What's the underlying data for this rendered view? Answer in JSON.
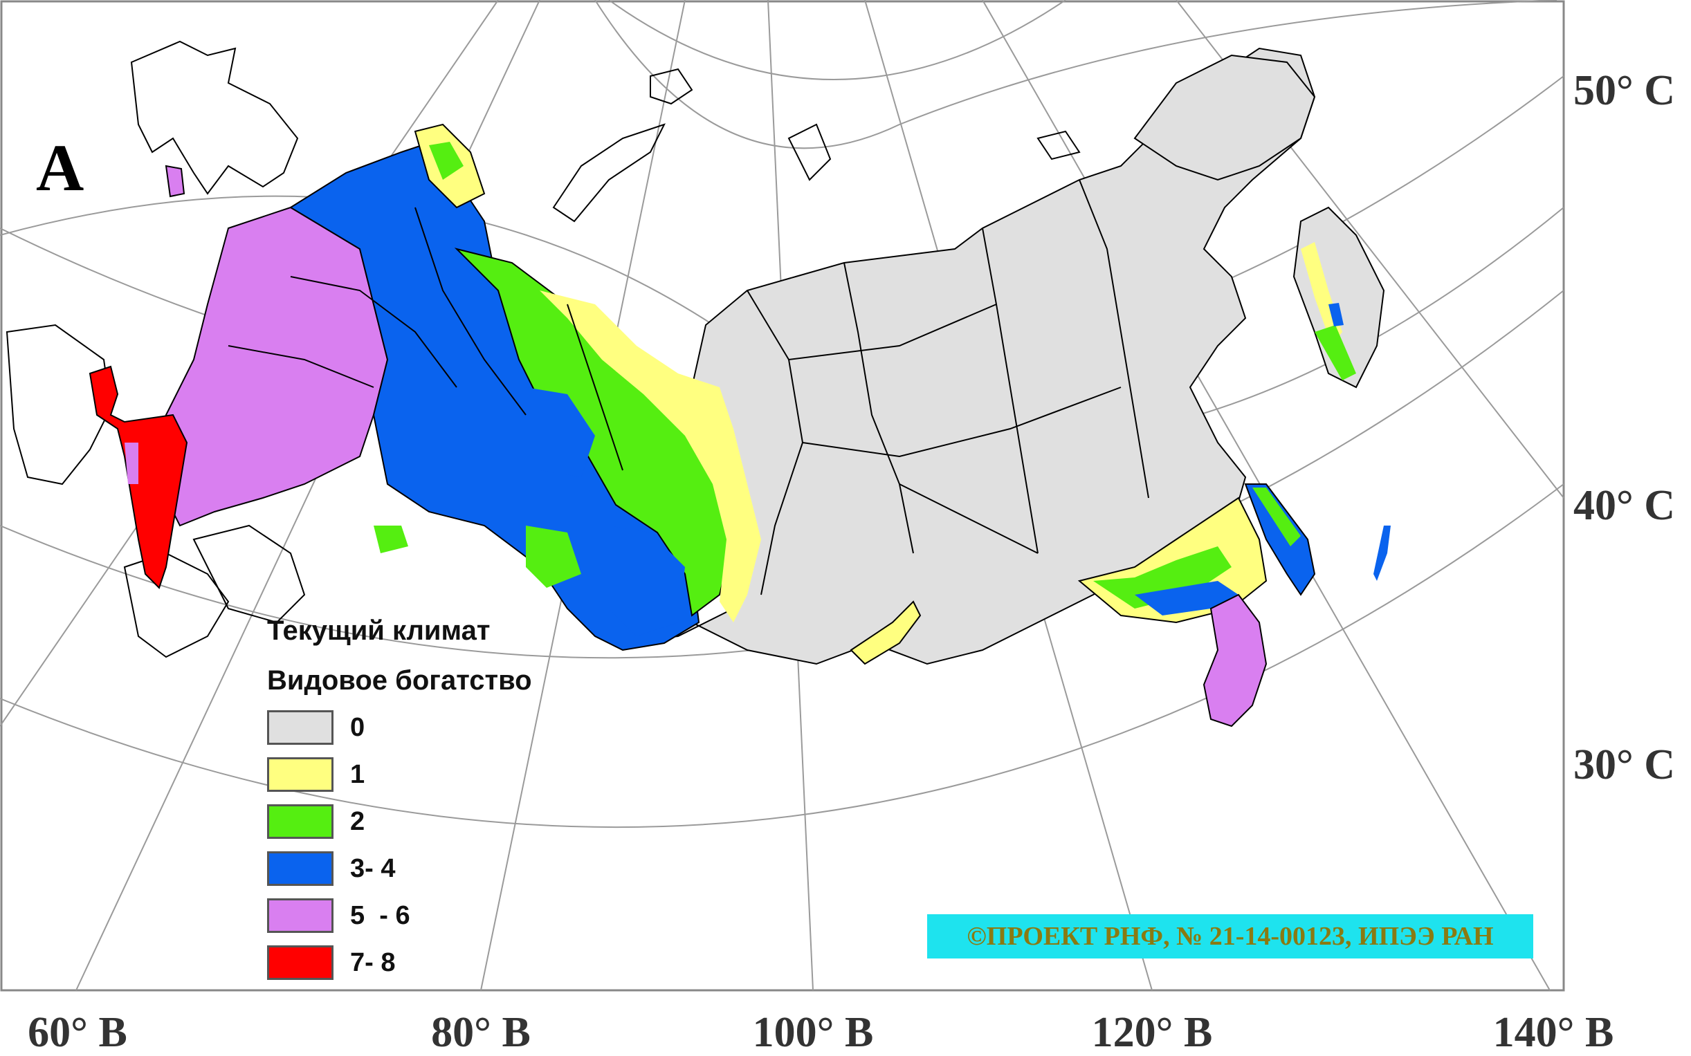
{
  "panel_letter": "А",
  "latitude_labels": [
    "50° С",
    "40° С",
    "30° С"
  ],
  "longitude_labels": [
    "60° В",
    "80° В",
    "100° В",
    "120° В",
    "140° В"
  ],
  "legend": {
    "title_line1": "Текущий климат",
    "title_line2": "Видовое богатство",
    "items": [
      {
        "label": "0",
        "color": "#e0e0e0"
      },
      {
        "label": "1",
        "color": "#ffff80"
      },
      {
        "label": "2",
        "color": "#55ee11"
      },
      {
        "label": "3- 4",
        "color": "#0a63ee"
      },
      {
        "label": "5  - 6",
        "color": "#d97ff0"
      },
      {
        "label": "7- 8",
        "color": "#ff0000"
      }
    ]
  },
  "copyright": "©ПРОЕКТ РНФ, № 21-14-00123, ИПЭЭ РАН",
  "colors": {
    "background": "#ffffff",
    "grid": "#9a9a9a",
    "boundary": "#000000",
    "label_box": "#1ee3ee",
    "label_text": "#8a7a12"
  }
}
